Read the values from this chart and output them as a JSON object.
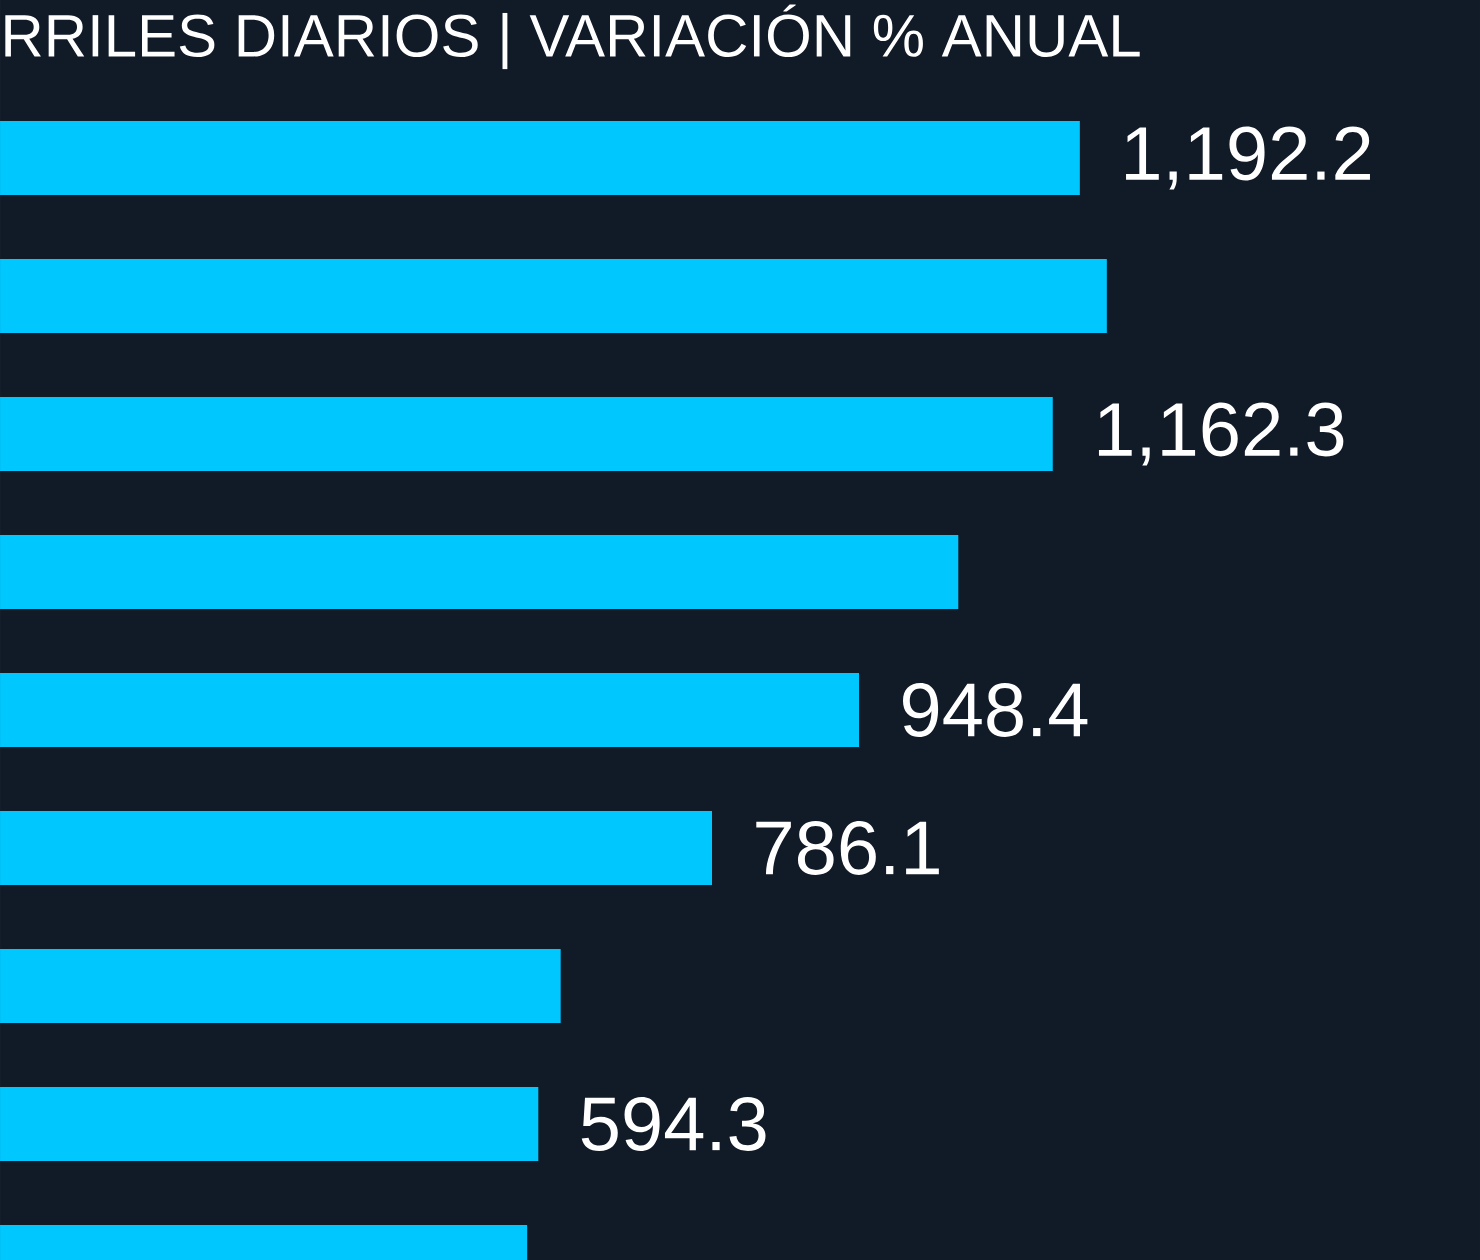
{
  "chart_data": {
    "type": "bar",
    "orientation": "horizontal",
    "title": "RRILES DIARIOS | VARIACIÓN % ANUAL",
    "categories": [
      null,
      null,
      null,
      null,
      null,
      null,
      null,
      null,
      null
    ],
    "values": [
      1192.2,
      1222,
      1162.3,
      1058,
      948.4,
      786.1,
      619,
      594.3,
      582
    ],
    "value_labels": [
      "1,192.2",
      null,
      "1,162.3",
      null,
      "948.4",
      "786.1",
      null,
      "594.3",
      null
    ],
    "color": "#00c8ff",
    "xlim": [
      0,
      1634
    ]
  }
}
